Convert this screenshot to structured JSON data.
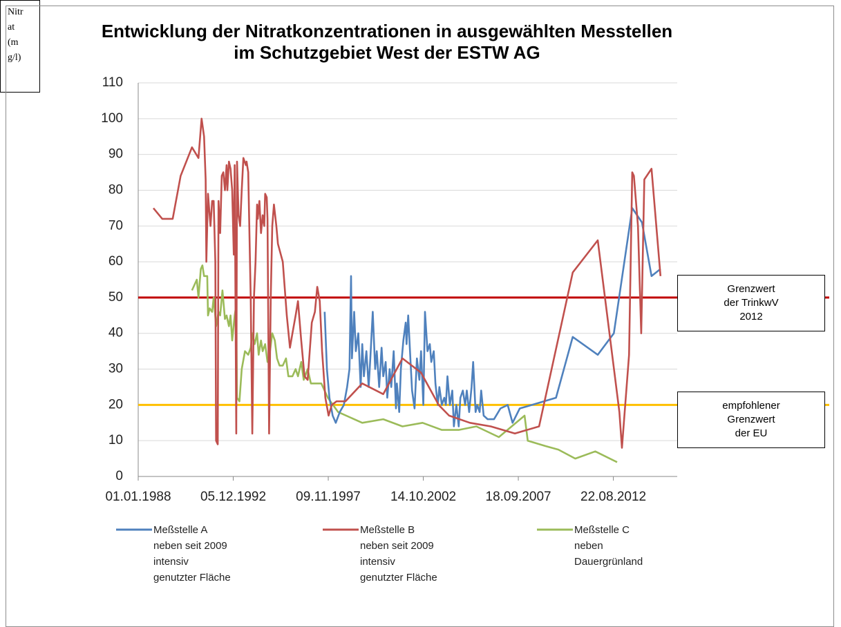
{
  "chart_data": {
    "type": "line",
    "title": "Entwicklung der Nitratkonzentrationen in ausgewählten Messtellen\nim Schutzgebiet West der ESTW AG",
    "y_label": "Nitrat (mg/l)",
    "xlim": [
      "1988-01-01",
      "2015-12-15"
    ],
    "xticks": [
      {
        "value": "1988-01-01",
        "label": "01.01.1988"
      },
      {
        "value": "1992-12-05",
        "label": "05.12.1992"
      },
      {
        "value": "1997-11-09",
        "label": "09.11.1997"
      },
      {
        "value": "2002-10-14",
        "label": "14.10.2002"
      },
      {
        "value": "2007-09-18",
        "label": "18.09.2007"
      },
      {
        "value": "2012-08-22",
        "label": "22.08.2012"
      }
    ],
    "ylim": [
      0,
      110
    ],
    "yticks": [
      0,
      10,
      20,
      30,
      40,
      50,
      60,
      70,
      80,
      90,
      100,
      110
    ],
    "grid": true,
    "legend": "bottom",
    "reference_lines": [
      {
        "value": 50,
        "color": "#c00000",
        "label": "Grenzwert\nder TrinkwV\n2012"
      },
      {
        "value": 20,
        "color": "#ffc000",
        "label": "empfohlener\nGrenzwert\nder EU"
      }
    ],
    "series": [
      {
        "name": "Meßstelle A\nneben seit 2009\nintensiv\ngenutzter Fläche",
        "color": "#4f81bd",
        "x": [
          "1997-09-01",
          "1997-10-15",
          "1997-12-01",
          "1998-02-01",
          "1998-04-01",
          "1998-06-15",
          "1998-09-01",
          "1998-11-01",
          "1998-12-15",
          "1999-01-15",
          "1999-02-01",
          "1999-03-15",
          "1999-04-15",
          "1999-06-01",
          "1999-07-15",
          "1999-08-15",
          "1999-09-15",
          "1999-11-01",
          "1999-12-15",
          "2000-01-15",
          "2000-03-01",
          "2000-04-15",
          "2000-05-15",
          "2000-07-01",
          "2000-08-15",
          "2000-09-15",
          "2000-11-01",
          "2000-12-01",
          "2001-01-15",
          "2001-02-15",
          "2001-04-01",
          "2001-05-15",
          "2001-06-01",
          "2001-07-15",
          "2001-08-15",
          "2001-10-01",
          "2001-11-15",
          "2001-12-01",
          "2002-01-01",
          "2002-02-15",
          "2002-03-15",
          "2002-05-01",
          "2002-06-15",
          "2002-08-01",
          "2002-09-01",
          "2002-10-15",
          "2002-11-15",
          "2003-01-01",
          "2003-02-15",
          "2003-03-15",
          "2003-05-01",
          "2003-06-01",
          "2003-07-15",
          "2003-08-15",
          "2003-10-01",
          "2003-11-15",
          "2003-12-15",
          "2004-01-15",
          "2004-03-01",
          "2004-04-15",
          "2004-05-15",
          "2004-07-01",
          "2004-08-15",
          "2004-09-15",
          "2004-11-01",
          "2004-12-15",
          "2005-01-15",
          "2005-03-01",
          "2005-04-15",
          "2005-05-15",
          "2005-07-01",
          "2005-08-01",
          "2005-09-15",
          "2005-10-15",
          "2005-12-01",
          "2006-02-15",
          "2006-06-15",
          "2006-10-15",
          "2007-03-01",
          "2007-06-01",
          "2007-10-15",
          "2008-06-01",
          "2009-09-01",
          "2010-07-15",
          "2011-11-01",
          "2012-09-01",
          "2013-08-15",
          "2014-02-15",
          "2014-08-15",
          "2015-02-01"
        ],
        "values": [
          46,
          30,
          22,
          17,
          15,
          18,
          20,
          25,
          30,
          56,
          33,
          46,
          35,
          40,
          25,
          37,
          28,
          35,
          25,
          33,
          46,
          30,
          35,
          25,
          36,
          28,
          32,
          22,
          30,
          25,
          35,
          19,
          26,
          18,
          30,
          38,
          43,
          37,
          45,
          32,
          24,
          19,
          33,
          27,
          35,
          20,
          46,
          35,
          37,
          32,
          35,
          26,
          20,
          25,
          20,
          22,
          20,
          28,
          20,
          24,
          14,
          20,
          14,
          22,
          24,
          20,
          24,
          18,
          25,
          32,
          18,
          20,
          18,
          24,
          17,
          16,
          16,
          19,
          20,
          15,
          19,
          20,
          22,
          39,
          34,
          40,
          75,
          71,
          56,
          58
        ]
      },
      {
        "name": "Meßstelle  B\nneben seit 2009\nintensiv\ngenutzter Fläche",
        "color": "#c0504d",
        "x": [
          "1988-10-15",
          "1989-04-01",
          "1989-10-15",
          "1990-03-15",
          "1990-10-15",
          "1991-02-15",
          "1991-04-15",
          "1991-06-01",
          "1991-07-01",
          "1991-07-15",
          "1991-08-15",
          "1991-10-01",
          "1991-11-01",
          "1991-12-01",
          "1992-01-01",
          "1992-01-15",
          "1992-02-15",
          "1992-03-01",
          "1992-04-01",
          "1992-05-01",
          "1992-06-01",
          "1992-07-01",
          "1992-08-01",
          "1992-08-15",
          "1992-09-15",
          "1992-10-15",
          "1992-11-15",
          "1992-12-15",
          "1993-01-01",
          "1993-02-01",
          "1993-02-15",
          "1993-03-15",
          "1993-04-15",
          "1993-05-15",
          "1993-06-15",
          "1993-08-01",
          "1993-08-15",
          "1993-09-15",
          "1993-11-01",
          "1993-12-01",
          "1994-01-01",
          "1994-02-01",
          "1994-03-01",
          "1994-03-15",
          "1994-04-15",
          "1994-05-15",
          "1994-06-15",
          "1994-07-15",
          "1994-08-01",
          "1994-09-01",
          "1994-09-15",
          "1994-10-15",
          "1994-11-15",
          "1994-12-15",
          "1995-01-15",
          "1995-03-01",
          "1995-04-01",
          "1995-07-01",
          "1995-09-15",
          "1995-11-15",
          "1996-01-01",
          "1996-03-01",
          "1996-04-15",
          "1996-06-15",
          "1996-08-15",
          "1996-10-15",
          "1997-01-01",
          "1997-03-01",
          "1997-04-15",
          "1997-06-01",
          "1997-07-15",
          "1997-09-15",
          "1997-11-15",
          "1998-01-15",
          "1998-04-15",
          "1998-10-01",
          "1999-08-15",
          "2000-09-15",
          "2001-09-15",
          "2002-09-01",
          "2003-08-01",
          "2004-02-15",
          "2005-03-15",
          "2006-04-15",
          "2007-07-15",
          "2008-10-15",
          "2010-07-15",
          "2011-11-01",
          "2012-12-15",
          "2013-02-01",
          "2013-06-15",
          "2013-08-15",
          "2013-09-15",
          "2013-12-01",
          "2014-02-01",
          "2014-04-01",
          "2014-08-15",
          "2015-02-01"
        ],
        "values": [
          75,
          72,
          72,
          84,
          92,
          89,
          100,
          95,
          83,
          60,
          79,
          70,
          77,
          77,
          60,
          10,
          9,
          77,
          68,
          84,
          85,
          80,
          87,
          80,
          88,
          86,
          80,
          62,
          87,
          12,
          88,
          73,
          70,
          80,
          89,
          87,
          88,
          85,
          50,
          12,
          50,
          60,
          76,
          72,
          77,
          68,
          73,
          70,
          79,
          78,
          72,
          12,
          50,
          70,
          76,
          70,
          65,
          60,
          45,
          36,
          40,
          45,
          49,
          38,
          28,
          27,
          43,
          46,
          53,
          49,
          35,
          22,
          17,
          20,
          21,
          21,
          26,
          23,
          33,
          29,
          20,
          17,
          15,
          14,
          12,
          14,
          57,
          66,
          18,
          8,
          34,
          85,
          84,
          70,
          40,
          83,
          86,
          56
        ]
      },
      {
        "name": "Meßstelle  C\nneben\nDauergrünland",
        "color": "#9bbb59",
        "x": [
          "1990-10-15",
          "1991-01-15",
          "1991-02-15",
          "1991-04-01",
          "1991-05-01",
          "1991-06-01",
          "1991-08-01",
          "1991-08-15",
          "1991-09-15",
          "1991-11-01",
          "1991-12-01",
          "1992-01-15",
          "1992-03-01",
          "1992-04-01",
          "1992-05-15",
          "1992-07-01",
          "1992-08-01",
          "1992-09-15",
          "1992-10-15",
          "1992-11-15",
          "1993-01-01",
          "1993-02-01",
          "1993-02-15",
          "1993-04-01",
          "1993-05-15",
          "1993-07-15",
          "1993-09-15",
          "1993-11-01",
          "1993-12-01",
          "1994-01-15",
          "1994-03-01",
          "1994-04-01",
          "1994-05-15",
          "1994-06-15",
          "1994-08-01",
          "1994-09-15",
          "1994-10-15",
          "1994-12-15",
          "1995-02-01",
          "1995-03-15",
          "1995-05-01",
          "1995-07-01",
          "1995-09-01",
          "1995-10-15",
          "1996-01-01",
          "1996-03-01",
          "1996-04-15",
          "1996-06-15",
          "1996-08-01",
          "1996-10-15",
          "1996-12-15",
          "1997-04-01",
          "1997-07-01",
          "1997-11-01",
          "1998-05-15",
          "1999-08-15",
          "2000-09-15",
          "2001-09-15",
          "2002-10-01",
          "2003-10-01",
          "2004-08-15",
          "2005-07-15",
          "2006-09-15",
          "2008-01-15",
          "2008-03-15",
          "2009-02-15",
          "2009-10-15",
          "2010-09-01",
          "2011-09-15",
          "2012-11-01"
        ],
        "values": [
          52,
          55,
          50,
          58,
          59,
          56,
          56,
          45,
          47,
          46,
          50,
          42,
          46,
          45,
          52,
          44,
          45,
          42,
          45,
          38,
          45,
          48,
          22,
          21,
          30,
          35,
          34,
          36,
          40,
          37,
          40,
          34,
          38,
          35,
          37,
          32,
          33,
          40,
          38,
          33,
          31,
          31,
          33,
          28,
          28,
          30,
          28,
          32,
          27,
          30,
          26,
          26,
          26,
          22,
          18,
          15,
          16,
          14,
          15,
          13,
          13,
          14,
          11,
          17,
          10,
          8.5,
          7.5,
          5,
          7,
          4
        ]
      }
    ]
  }
}
